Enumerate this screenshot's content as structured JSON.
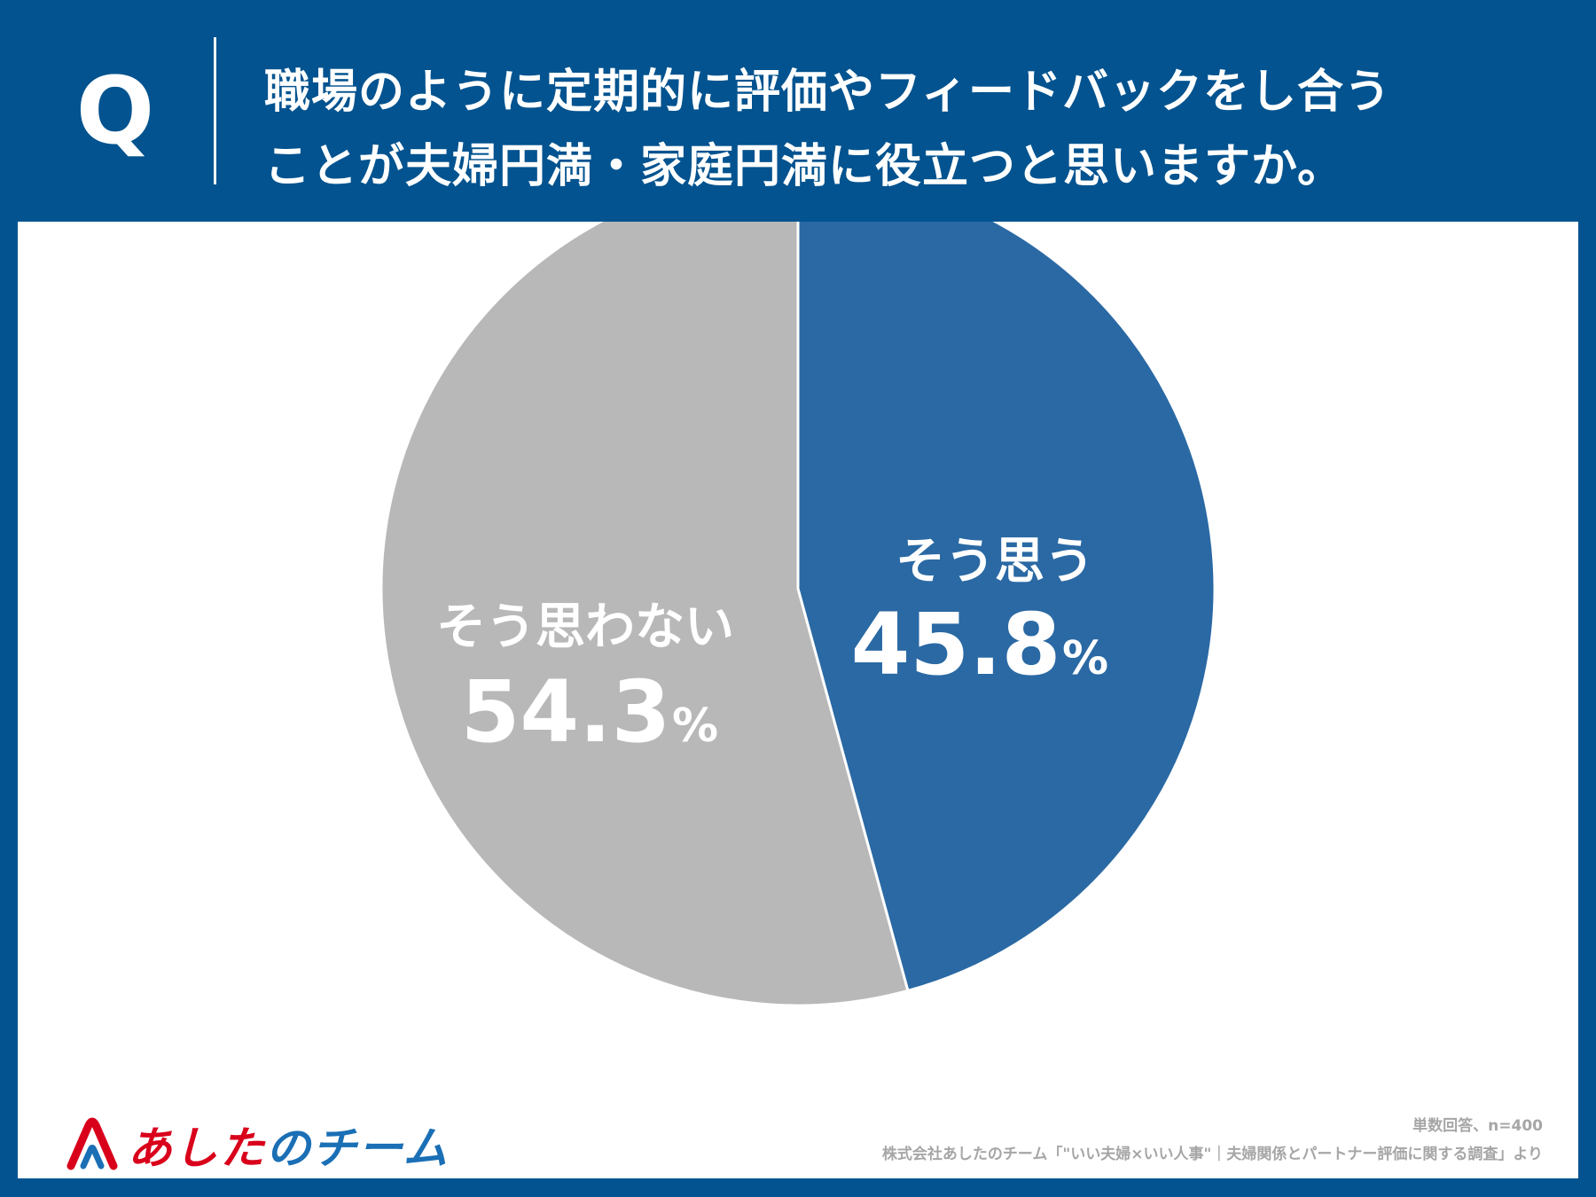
{
  "header": {
    "q_label": "Q",
    "question_line1": "職場のように定期的に評価やフィードバックをし合う",
    "question_line2": "ことが夫婦円満・家庭円満に役立つと思いますか。"
  },
  "colors": {
    "background": "#02538f",
    "slice_yes": "#2a69a4",
    "slice_no": "#b8b8b8",
    "logo_red": "#d9001b",
    "logo_blue": "#1a6fb5"
  },
  "chart_data": {
    "type": "pie",
    "title": "職場のように定期的に評価やフィードバックをし合うことが夫婦円満・家庭円満に役立つと思いますか。",
    "start": "top",
    "direction": "clockwise",
    "slices": [
      {
        "label": "そう思う",
        "value": 45.8,
        "value_text": "45.8",
        "unit": "%",
        "color": "#2a69a4"
      },
      {
        "label": "そう思わない",
        "value": 54.3,
        "value_text": "54.3",
        "unit": "%",
        "color": "#b8b8b8"
      }
    ]
  },
  "footer": {
    "sample_note": "単数回答、n=400",
    "source_note": "株式会社あしたのチーム「\"いい夫婦×いい人事\"｜夫婦関係とパートナー評価に関する調査」より"
  },
  "logo": {
    "text_part1": "あした",
    "text_part2": "の",
    "text_part3": "チーム"
  }
}
